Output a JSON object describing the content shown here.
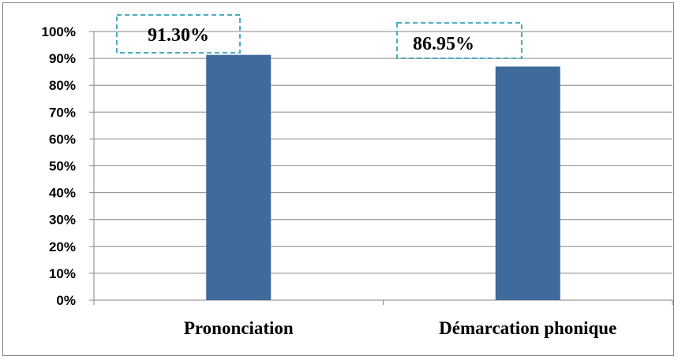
{
  "chart_data": {
    "type": "bar",
    "categories": [
      "Prononciation",
      "Démarcation phonique"
    ],
    "values": [
      91.3,
      86.95
    ],
    "data_labels": [
      "91.30%",
      "86.95%"
    ],
    "y_tick_labels": [
      "0%",
      "10%",
      "20%",
      "30%",
      "40%",
      "50%",
      "60%",
      "70%",
      "80%",
      "90%",
      "100%"
    ],
    "ylim": [
      0,
      100
    ],
    "y_unit": "%",
    "grid": true,
    "legend": "none",
    "title": "",
    "xlabel": "",
    "ylabel": "",
    "colors": {
      "bar": "#3e6a9c",
      "gridline": "#868686",
      "axis": "#868686",
      "label_border": "#4bacc6",
      "frame": "#7f7f7f"
    }
  }
}
